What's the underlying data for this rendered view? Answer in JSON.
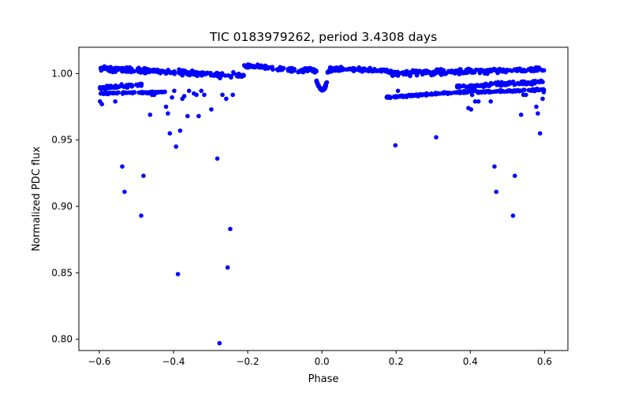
{
  "chart_data": {
    "type": "scatter",
    "title": "TIC 0183979262, period 3.4308 days",
    "xlabel": "Phase",
    "ylabel": "Normalized PDC flux",
    "xlim": [
      -0.655,
      0.663
    ],
    "ylim": [
      0.7915,
      1.0198
    ],
    "xticks": [
      -0.6,
      -0.4,
      -0.2,
      0.0,
      0.2,
      0.4,
      0.6
    ],
    "xtick_labels": [
      "−0.6",
      "−0.4",
      "−0.2",
      "0.0",
      "0.2",
      "0.4",
      "0.6"
    ],
    "yticks": [
      0.8,
      0.85,
      0.9,
      0.95,
      1.0
    ],
    "ytick_labels": [
      "0.80",
      "0.85",
      "0.90",
      "0.95",
      "1.00"
    ],
    "grid": false,
    "marker_color": "#0000ff",
    "bands": [
      {
        "x0": -0.6,
        "x1": -0.21,
        "y0": 1.004,
        "y1": 0.998,
        "sy": 0.003
      },
      {
        "x0": -0.21,
        "x1": -0.05,
        "y0": 1.006,
        "y1": 1.002,
        "sy": 0.002
      },
      {
        "x0": 0.02,
        "x1": 0.18,
        "y0": 1.004,
        "y1": 1.002,
        "sy": 0.002
      },
      {
        "x0": 0.18,
        "x1": 0.6,
        "y0": 1.0,
        "y1": 1.003,
        "sy": 0.003
      },
      {
        "x0": -0.6,
        "x1": -0.48,
        "y0": 0.989,
        "y1": 0.992,
        "sy": 0.002
      },
      {
        "x0": -0.6,
        "x1": -0.42,
        "y0": 0.985,
        "y1": 0.986,
        "sy": 0.001
      },
      {
        "x0": 0.17,
        "x1": 0.42,
        "y0": 0.982,
        "y1": 0.987,
        "sy": 0.001
      },
      {
        "x0": 0.36,
        "x1": 0.6,
        "y0": 0.99,
        "y1": 0.994,
        "sy": 0.002
      },
      {
        "x0": 0.42,
        "x1": 0.6,
        "y0": 0.986,
        "y1": 0.988,
        "sy": 0.001
      }
    ],
    "transit": {
      "center": 0.0,
      "halfwidth": 0.015,
      "depth": 0.0125
    },
    "outliers": [
      [
        -0.598,
        0.979
      ],
      [
        -0.593,
        0.977
      ],
      [
        -0.557,
        0.979
      ],
      [
        -0.538,
        0.93
      ],
      [
        -0.532,
        0.911
      ],
      [
        -0.487,
        0.893
      ],
      [
        -0.481,
        0.923
      ],
      [
        -0.463,
        0.969
      ],
      [
        -0.458,
        0.984
      ],
      [
        -0.452,
        0.984
      ],
      [
        -0.42,
        0.975
      ],
      [
        -0.415,
        0.97
      ],
      [
        -0.41,
        0.955
      ],
      [
        -0.404,
        0.982
      ],
      [
        -0.398,
        0.987
      ],
      [
        -0.393,
        0.945
      ],
      [
        -0.388,
        0.849
      ],
      [
        -0.382,
        0.957
      ],
      [
        -0.376,
        0.981
      ],
      [
        -0.371,
        0.983
      ],
      [
        -0.362,
        0.968
      ],
      [
        -0.358,
        0.987
      ],
      [
        -0.345,
        0.985
      ],
      [
        -0.338,
        0.984
      ],
      [
        -0.332,
        0.968
      ],
      [
        -0.325,
        0.987
      ],
      [
        -0.317,
        0.984
      ],
      [
        -0.298,
        0.973
      ],
      [
        -0.282,
        0.936
      ],
      [
        -0.276,
        0.797
      ],
      [
        -0.268,
        0.984
      ],
      [
        -0.258,
        0.981
      ],
      [
        -0.254,
        0.854
      ],
      [
        -0.247,
        0.883
      ],
      [
        -0.24,
        0.984
      ],
      [
        0.198,
        0.946
      ],
      [
        0.205,
        0.987
      ],
      [
        0.308,
        0.952
      ],
      [
        0.33,
        0.986
      ],
      [
        0.395,
        0.974
      ],
      [
        0.402,
        0.973
      ],
      [
        0.405,
        0.984
      ],
      [
        0.413,
        0.979
      ],
      [
        0.422,
        0.979
      ],
      [
        0.455,
        0.979
      ],
      [
        0.465,
        0.93
      ],
      [
        0.47,
        0.911
      ],
      [
        0.515,
        0.893
      ],
      [
        0.52,
        0.923
      ],
      [
        0.537,
        0.969
      ],
      [
        0.543,
        0.984
      ],
      [
        0.55,
        0.984
      ],
      [
        0.578,
        0.975
      ],
      [
        0.582,
        0.97
      ],
      [
        0.588,
        0.955
      ],
      [
        0.595,
        0.981
      ],
      [
        0.598,
        0.986
      ]
    ]
  }
}
